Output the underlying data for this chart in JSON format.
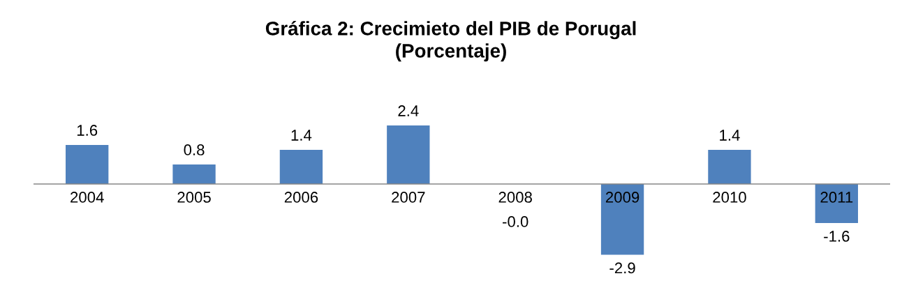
{
  "chart_data": {
    "type": "bar",
    "title": "Gráfica 2: Crecimieto del PIB de Porugal\n(Porcentaje)",
    "categories": [
      "2004",
      "2005",
      "2006",
      "2007",
      "2008",
      "2009",
      "2010",
      "2011"
    ],
    "values": [
      1.6,
      0.8,
      1.4,
      2.4,
      -0.0,
      -2.9,
      1.4,
      -1.6
    ],
    "value_labels": [
      "1.6",
      "0.8",
      "1.4",
      "2.4",
      "-0.0",
      "-2.9",
      "1.4",
      "-1.6"
    ],
    "color": "#4f81bd"
  }
}
